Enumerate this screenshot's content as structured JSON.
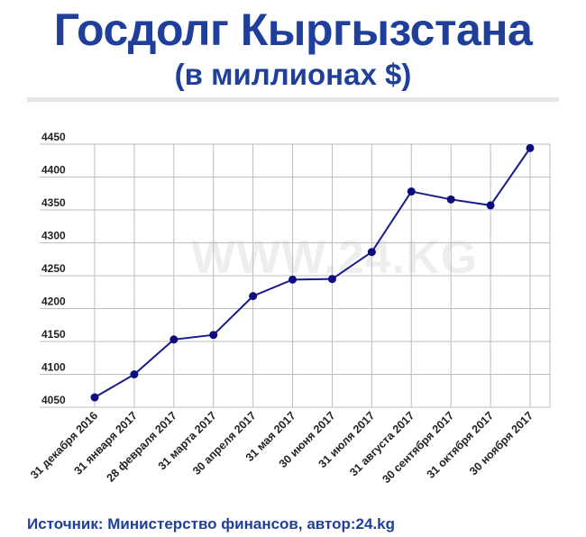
{
  "header": {
    "title": "Госдолг Кыргызстана",
    "subtitle": "(в миллионах $)"
  },
  "watermark": "WWW.24.KG",
  "footer": {
    "source": "Источник: Министерство финансов, автор:24.kg"
  },
  "colors": {
    "title": "#1f3f9a",
    "line": "#1a1a8c",
    "marker": "#0d0d80",
    "grid": "#bdbdbd"
  },
  "chart_data": {
    "type": "line",
    "title": "Госдолг Кыргызстана",
    "subtitle": "(в миллионах $)",
    "xlabel": "",
    "ylabel": "",
    "ylim": [
      4050,
      4450
    ],
    "yticks": [
      4050,
      4100,
      4150,
      4200,
      4250,
      4300,
      4350,
      4400,
      4450
    ],
    "grid": true,
    "legend": "none",
    "categories": [
      "31 декабря 2016",
      "31 января 2017",
      "28 февраля 2017",
      "31 марта 2017",
      "30 апреля 2017",
      "31 мая 2017",
      "30 июня 2017",
      "31 июля 2017",
      "31 августа 2017",
      "30 сентября 2017",
      "31 октября 2017",
      "30 ноября 2017"
    ],
    "values": [
      4065,
      4100,
      4153,
      4160,
      4219,
      4244,
      4245,
      4286,
      4378,
      4366,
      4357,
      4444
    ]
  }
}
